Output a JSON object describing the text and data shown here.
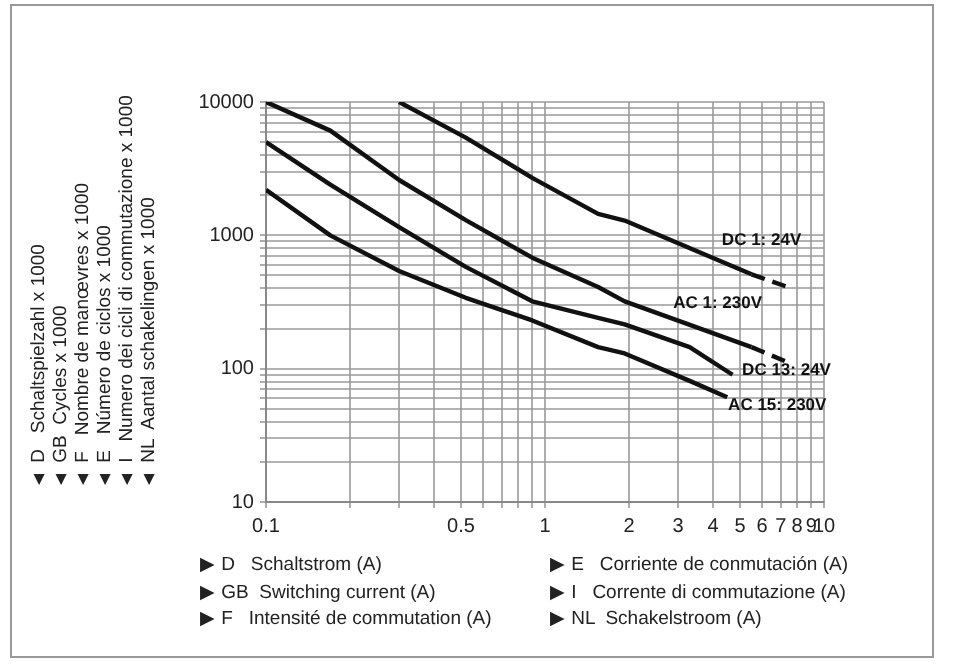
{
  "chart_data": {
    "type": "line",
    "log": "xy",
    "grid": true,
    "legend": false,
    "marker": "none",
    "xlabel": "▶ D   Schaltstrom (A)\n▶ GB  Switching current (A)\n▶ F   Intensité de commutation (A)\n▶ E   Corriente de conmutación (A)\n▶ I   Corrente di commutazione (A)\n▶ NL  Schakelstroom (A)",
    "ylabel": "▲ D   Schaltspielzahl x 1000\n▲ GB  Cycles x 1000\n▲ F   Nombre de manœvres x 1000\n▲ E   Número de ciclos x 1000\n▲ I   Numero dei cicli di commutazione x 1000\n▲ NL  Aantal schakelingen x 1000",
    "xlim": [
      0.1,
      10
    ],
    "ylim": [
      10,
      10000
    ],
    "xticks": [
      0.1,
      {
        "value": 0.2,
        "label": null
      },
      {
        "value": 0.3,
        "label": null
      },
      {
        "value": 0.4,
        "label": null
      },
      0.5,
      {
        "value": 0.6,
        "label": null
      },
      {
        "value": 0.7,
        "label": null
      },
      {
        "value": 0.8,
        "label": null
      },
      {
        "value": 0.9,
        "label": null
      },
      1,
      2,
      3,
      4,
      5,
      6,
      7,
      8,
      9,
      10
    ],
    "yticks": [
      10,
      {
        "value": 20,
        "label": null
      },
      {
        "value": 30,
        "label": null
      },
      {
        "value": 40,
        "label": null
      },
      {
        "value": 50,
        "label": null
      },
      {
        "value": 60,
        "label": null
      },
      {
        "value": 70,
        "label": null
      },
      {
        "value": 80,
        "label": null
      },
      {
        "value": 90,
        "label": null
      },
      100,
      {
        "value": 200,
        "label": null
      },
      {
        "value": 300,
        "label": null
      },
      {
        "value": 400,
        "label": null
      },
      {
        "value": 500,
        "label": null
      },
      {
        "value": 600,
        "label": null
      },
      {
        "value": 700,
        "label": null
      },
      {
        "value": 800,
        "label": null
      },
      {
        "value": 900,
        "label": null
      },
      1000,
      {
        "value": 2000,
        "label": null
      },
      {
        "value": 3000,
        "label": null
      },
      {
        "value": 4000,
        "label": null
      },
      {
        "value": 5000,
        "label": null
      },
      {
        "value": 6000,
        "label": null
      },
      {
        "value": 7000,
        "label": null
      },
      {
        "value": 8000,
        "label": null
      },
      {
        "value": 9000,
        "label": null
      },
      10000
    ],
    "series": [
      {
        "name": "DC 1: 24V",
        "color": "#111111",
        "line_style": "solid",
        "x": [
          0.3,
          0.52,
          0.9,
          1.55,
          1.93,
          5.5
        ],
        "values": [
          10000,
          5400,
          2700,
          1450,
          1290,
          510
        ]
      },
      {
        "color": "#111111",
        "line_style": "dashed",
        "x": [
          5.5,
          7.4
        ],
        "values": [
          510,
          410
        ]
      },
      {
        "name": "AC 1: 230V",
        "color": "#111111",
        "line_style": "solid",
        "x": [
          0.1,
          0.17,
          0.3,
          0.52,
          0.9,
          1.55,
          1.93,
          5.5
        ],
        "values": [
          10000,
          6100,
          2600,
          1300,
          680,
          410,
          320,
          145
        ]
      },
      {
        "color": "#111111",
        "line_style": "dashed",
        "x": [
          5.5,
          7.4
        ],
        "values": [
          145,
          112
        ]
      },
      {
        "name": "DC 13: 24V",
        "color": "#111111",
        "line_style": "solid",
        "x": [
          0.1,
          0.17,
          0.3,
          0.52,
          0.9,
          1.55,
          1.93,
          3.3,
          4.7
        ],
        "values": [
          5000,
          2400,
          1150,
          580,
          320,
          240,
          215,
          145,
          90
        ]
      },
      {
        "name": "AC 15: 230V",
        "color": "#111111",
        "line_style": "solid",
        "x": [
          0.1,
          0.17,
          0.3,
          0.52,
          0.9,
          1.55,
          1.93,
          3.3,
          4.5
        ],
        "values": [
          2200,
          1000,
          540,
          340,
          230,
          145,
          130,
          81,
          61
        ]
      }
    ]
  }
}
